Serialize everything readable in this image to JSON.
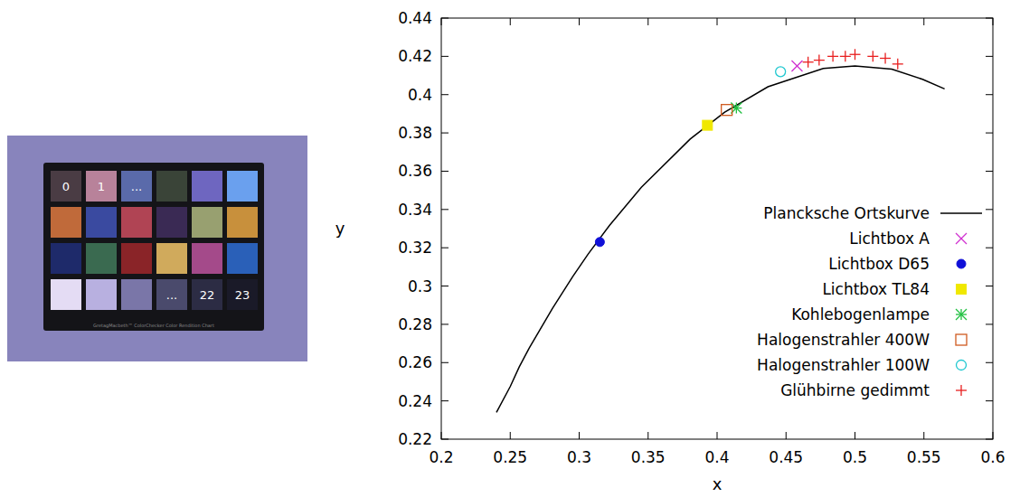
{
  "chart_data": {
    "type": "scatter",
    "x_label": "x",
    "y_label": "y",
    "xlim": [
      0.2,
      0.6
    ],
    "xticks": [
      0.2,
      0.25,
      0.3,
      0.35,
      0.4,
      0.45,
      0.5,
      0.55,
      0.6
    ],
    "ylim": [
      0.22,
      0.44
    ],
    "yticks": [
      0.22,
      0.24,
      0.26,
      0.28,
      0.3,
      0.32,
      0.34,
      0.36,
      0.38,
      0.4,
      0.42,
      0.44
    ],
    "grid": false,
    "legend": "lower right",
    "series": [
      {
        "name": "Plancksche Ortskurve",
        "type": "line",
        "color": "#000000",
        "line_style": "solid",
        "x": [
          0.24,
          0.2501,
          0.2565,
          0.2637,
          0.2806,
          0.2952,
          0.3064,
          0.3221,
          0.3451,
          0.3805,
          0.4053,
          0.4369,
          0.477,
          0.5,
          0.5267,
          0.549,
          0.565
        ],
        "values": [
          0.234,
          0.2476,
          0.2577,
          0.2675,
          0.2883,
          0.3048,
          0.3166,
          0.3318,
          0.3516,
          0.3768,
          0.3907,
          0.4041,
          0.4137,
          0.415,
          0.4133,
          0.408,
          0.403
        ]
      },
      {
        "name": "Lichtbox A",
        "type": "scatter",
        "color": "#d030d0",
        "marker": "x",
        "x": [
          0.458
        ],
        "values": [
          0.415
        ]
      },
      {
        "name": "Lichtbox D65",
        "type": "scatter",
        "color": "#1010d8",
        "marker": "circle",
        "x": [
          0.315
        ],
        "values": [
          0.323
        ]
      },
      {
        "name": "Lichtbox TL84",
        "type": "scatter",
        "color": "#f0e800",
        "marker": "square",
        "x": [
          0.393
        ],
        "values": [
          0.384
        ]
      },
      {
        "name": "Kohlebogenlampe",
        "type": "scatter",
        "color": "#20c040",
        "marker": "star",
        "x": [
          0.414
        ],
        "values": [
          0.393
        ]
      },
      {
        "name": "Halogenstrahler 400W",
        "type": "scatter",
        "color": "#d05a20",
        "marker": "square-open",
        "x": [
          0.407
        ],
        "values": [
          0.392
        ]
      },
      {
        "name": "Halogenstrahler 100W",
        "type": "scatter",
        "color": "#20c8d0",
        "marker": "circle-open",
        "x": [
          0.446
        ],
        "values": [
          0.412
        ]
      },
      {
        "name": "Glühbirne gedimmt",
        "type": "scatter",
        "color": "#e82020",
        "marker": "plus",
        "x": [
          0.466,
          0.474,
          0.484,
          0.493,
          0.5,
          0.513,
          0.522,
          0.531
        ],
        "values": [
          0.417,
          0.418,
          0.42,
          0.42,
          0.421,
          0.42,
          0.419,
          0.416
        ]
      }
    ]
  },
  "colorchecker": {
    "patch_labels": [
      "0",
      "1",
      "...",
      null,
      null,
      null,
      null,
      null,
      null,
      null,
      null,
      null,
      null,
      null,
      null,
      null,
      null,
      null,
      null,
      null,
      null,
      "...",
      "22",
      "23"
    ],
    "footer": "GretagMacbeth™ ColorChecker Color Rendition Chart"
  }
}
